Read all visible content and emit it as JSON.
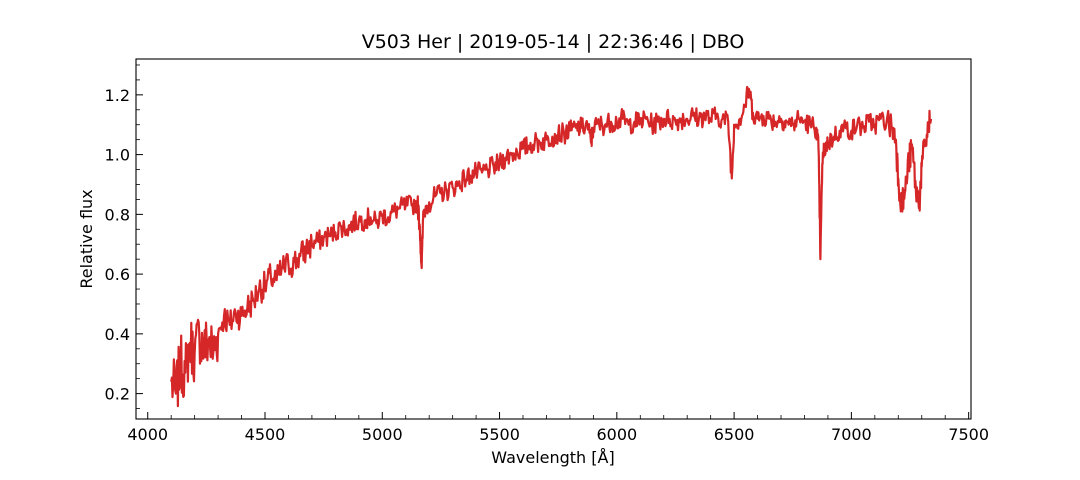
{
  "chart_data": {
    "type": "line",
    "title": "V503 Her | 2019-05-14 | 22:36:46 | DBO",
    "xlabel": "Wavelength [Å]",
    "ylabel": "Relative flux",
    "xlim": [
      3950,
      7510
    ],
    "ylim": [
      0.115,
      1.32
    ],
    "xticks": [
      4000,
      4500,
      5000,
      5500,
      6000,
      6500,
      7000,
      7500
    ],
    "yticks": [
      0.2,
      0.4,
      0.6,
      0.8,
      1.0,
      1.2
    ],
    "xtick_labels": [
      "4000",
      "4500",
      "5000",
      "5500",
      "6000",
      "6500",
      "7000",
      "7500"
    ],
    "ytick_labels": [
      "0.2",
      "0.4",
      "0.6",
      "0.8",
      "1.0",
      "1.2"
    ],
    "grid": false,
    "series_color": "#d62728",
    "series": [
      {
        "x": [
          4100,
          4120,
          4140,
          4160,
          4180,
          4200,
          4220,
          4240,
          4260,
          4280,
          4300,
          4325,
          4350,
          4375,
          4400,
          4425,
          4450,
          4475,
          4500,
          4525,
          4550,
          4575,
          4600,
          4625,
          4650,
          4675,
          4700,
          4725,
          4750,
          4775,
          4800,
          4825,
          4850,
          4875,
          4900,
          4925,
          4950,
          4975,
          5000,
          5025,
          5050,
          5075,
          5100,
          5125,
          5150,
          5160,
          5168,
          5175,
          5200,
          5225,
          5250,
          5275,
          5300,
          5325,
          5350,
          5375,
          5400,
          5425,
          5450,
          5475,
          5500,
          5525,
          5550,
          5575,
          5600,
          5625,
          5650,
          5675,
          5700,
          5725,
          5750,
          5775,
          5800,
          5825,
          5850,
          5875,
          5890,
          5900,
          5925,
          5950,
          5975,
          6000,
          6025,
          6050,
          6075,
          6100,
          6125,
          6150,
          6175,
          6200,
          6225,
          6250,
          6275,
          6300,
          6325,
          6350,
          6375,
          6400,
          6425,
          6450,
          6475,
          6490,
          6500,
          6525,
          6545,
          6563,
          6580,
          6600,
          6625,
          6650,
          6675,
          6700,
          6725,
          6750,
          6775,
          6800,
          6825,
          6850,
          6860,
          6868,
          6876,
          6885,
          6900,
          6925,
          6950,
          6975,
          7000,
          7025,
          7050,
          7075,
          7100,
          7125,
          7150,
          7175,
          7190,
          7200,
          7215,
          7230,
          7245,
          7260,
          7275,
          7290,
          7300,
          7315,
          7330,
          7340
        ],
        "y": [
          0.24,
          0.2,
          0.3,
          0.27,
          0.37,
          0.33,
          0.4,
          0.35,
          0.38,
          0.34,
          0.4,
          0.46,
          0.43,
          0.47,
          0.46,
          0.49,
          0.51,
          0.55,
          0.56,
          0.59,
          0.58,
          0.62,
          0.63,
          0.64,
          0.66,
          0.68,
          0.7,
          0.71,
          0.72,
          0.73,
          0.74,
          0.76,
          0.75,
          0.77,
          0.78,
          0.78,
          0.79,
          0.77,
          0.8,
          0.79,
          0.81,
          0.82,
          0.83,
          0.83,
          0.84,
          0.76,
          0.62,
          0.81,
          0.84,
          0.86,
          0.87,
          0.88,
          0.89,
          0.9,
          0.92,
          0.93,
          0.94,
          0.94,
          0.95,
          0.96,
          0.97,
          0.99,
          1.0,
          1.01,
          1.02,
          1.03,
          1.04,
          1.04,
          1.05,
          1.06,
          1.07,
          1.07,
          1.08,
          1.09,
          1.09,
          1.1,
          1.04,
          1.09,
          1.1,
          1.1,
          1.11,
          1.11,
          1.12,
          1.1,
          1.11,
          1.11,
          1.12,
          1.1,
          1.11,
          1.12,
          1.12,
          1.11,
          1.12,
          1.12,
          1.13,
          1.12,
          1.13,
          1.12,
          1.13,
          1.12,
          1.11,
          0.92,
          1.1,
          1.12,
          1.16,
          1.22,
          1.14,
          1.12,
          1.13,
          1.12,
          1.11,
          1.12,
          1.11,
          1.1,
          1.12,
          1.11,
          1.1,
          1.09,
          1.02,
          0.65,
          0.97,
          1.02,
          1.04,
          1.06,
          1.08,
          1.09,
          1.08,
          1.1,
          1.09,
          1.11,
          1.1,
          1.12,
          1.11,
          1.09,
          1.05,
          0.92,
          0.83,
          0.88,
          0.98,
          1.02,
          0.88,
          0.84,
          0.96,
          1.04,
          1.1,
          1.12
        ]
      }
    ]
  }
}
